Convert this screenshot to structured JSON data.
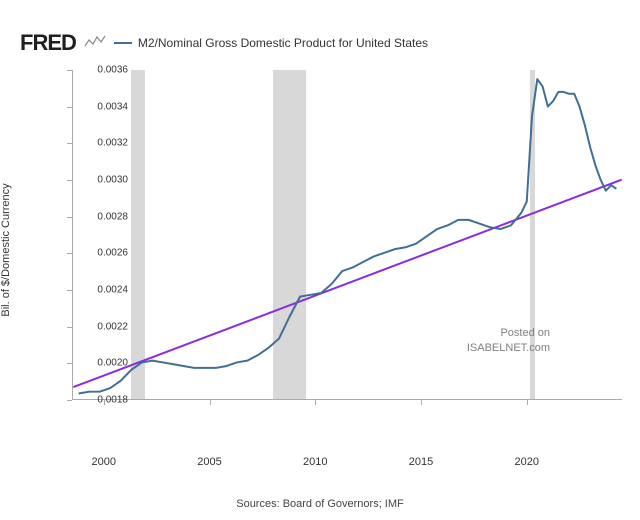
{
  "logo_text": "FRED",
  "series_label": "M2/Nominal Gross Domestic Product for United States",
  "y_axis_label": "Bil. of $/Domestic Currency",
  "source_text": "Sources: Board of Governors; IMF",
  "watermark_line1": "Posted on",
  "watermark_line2": "ISABELNET.com",
  "chart": {
    "type": "line",
    "x_range": [
      1998.5,
      2024.5
    ],
    "y_range": [
      0.0018,
      0.0036
    ],
    "y_ticks": [
      0.0018,
      0.002,
      0.0022,
      0.0024,
      0.0026,
      0.0028,
      0.003,
      0.0032,
      0.0034,
      0.0036
    ],
    "x_ticks": [
      2000,
      2005,
      2010,
      2015,
      2020
    ],
    "line_color": "#406e96",
    "line_width": 2,
    "trend_color": "#8a2be2",
    "trend_width": 2,
    "background": "#ffffff",
    "axis_color": "#aaaaaa",
    "recession_color": "#d8d8d8",
    "recessions": [
      {
        "start": 2001.25,
        "end": 2001.9
      },
      {
        "start": 2007.95,
        "end": 2009.5
      },
      {
        "start": 2020.1,
        "end": 2020.35
      }
    ],
    "trend_line": {
      "x1": 1998.5,
      "y1": 0.001865,
      "x2": 2024.5,
      "y2": 0.003
    },
    "data": [
      {
        "x": 1998.75,
        "y": 0.00183
      },
      {
        "x": 1999.25,
        "y": 0.00184
      },
      {
        "x": 1999.75,
        "y": 0.00184
      },
      {
        "x": 2000.25,
        "y": 0.00186
      },
      {
        "x": 2000.75,
        "y": 0.0019
      },
      {
        "x": 2001.25,
        "y": 0.00196
      },
      {
        "x": 2001.75,
        "y": 0.002
      },
      {
        "x": 2002.25,
        "y": 0.00201
      },
      {
        "x": 2002.75,
        "y": 0.002
      },
      {
        "x": 2003.25,
        "y": 0.00199
      },
      {
        "x": 2003.75,
        "y": 0.00198
      },
      {
        "x": 2004.25,
        "y": 0.00197
      },
      {
        "x": 2004.75,
        "y": 0.00197
      },
      {
        "x": 2005.25,
        "y": 0.00197
      },
      {
        "x": 2005.75,
        "y": 0.00198
      },
      {
        "x": 2006.25,
        "y": 0.002
      },
      {
        "x": 2006.75,
        "y": 0.00201
      },
      {
        "x": 2007.25,
        "y": 0.00204
      },
      {
        "x": 2007.75,
        "y": 0.00208
      },
      {
        "x": 2008.25,
        "y": 0.00213
      },
      {
        "x": 2008.75,
        "y": 0.00225
      },
      {
        "x": 2009.25,
        "y": 0.00236
      },
      {
        "x": 2009.75,
        "y": 0.00237
      },
      {
        "x": 2010.25,
        "y": 0.00238
      },
      {
        "x": 2010.75,
        "y": 0.00243
      },
      {
        "x": 2011.25,
        "y": 0.0025
      },
      {
        "x": 2011.75,
        "y": 0.00252
      },
      {
        "x": 2012.25,
        "y": 0.00255
      },
      {
        "x": 2012.75,
        "y": 0.00258
      },
      {
        "x": 2013.25,
        "y": 0.0026
      },
      {
        "x": 2013.75,
        "y": 0.00262
      },
      {
        "x": 2014.25,
        "y": 0.00263
      },
      {
        "x": 2014.75,
        "y": 0.00265
      },
      {
        "x": 2015.25,
        "y": 0.00269
      },
      {
        "x": 2015.75,
        "y": 0.00273
      },
      {
        "x": 2016.25,
        "y": 0.00275
      },
      {
        "x": 2016.75,
        "y": 0.00278
      },
      {
        "x": 2017.25,
        "y": 0.00278
      },
      {
        "x": 2017.75,
        "y": 0.00276
      },
      {
        "x": 2018.25,
        "y": 0.00274
      },
      {
        "x": 2018.75,
        "y": 0.00273
      },
      {
        "x": 2019.25,
        "y": 0.00275
      },
      {
        "x": 2019.75,
        "y": 0.00282
      },
      {
        "x": 2020.0,
        "y": 0.00288
      },
      {
        "x": 2020.25,
        "y": 0.00335
      },
      {
        "x": 2020.5,
        "y": 0.00355
      },
      {
        "x": 2020.75,
        "y": 0.00351
      },
      {
        "x": 2021.0,
        "y": 0.0034
      },
      {
        "x": 2021.25,
        "y": 0.00343
      },
      {
        "x": 2021.5,
        "y": 0.00348
      },
      {
        "x": 2021.75,
        "y": 0.00348
      },
      {
        "x": 2022.0,
        "y": 0.00347
      },
      {
        "x": 2022.25,
        "y": 0.00347
      },
      {
        "x": 2022.5,
        "y": 0.0034
      },
      {
        "x": 2022.75,
        "y": 0.0033
      },
      {
        "x": 2023.0,
        "y": 0.00318
      },
      {
        "x": 2023.25,
        "y": 0.00308
      },
      {
        "x": 2023.5,
        "y": 0.003
      },
      {
        "x": 2023.75,
        "y": 0.00294
      },
      {
        "x": 2024.0,
        "y": 0.00297
      },
      {
        "x": 2024.25,
        "y": 0.00295
      }
    ]
  }
}
